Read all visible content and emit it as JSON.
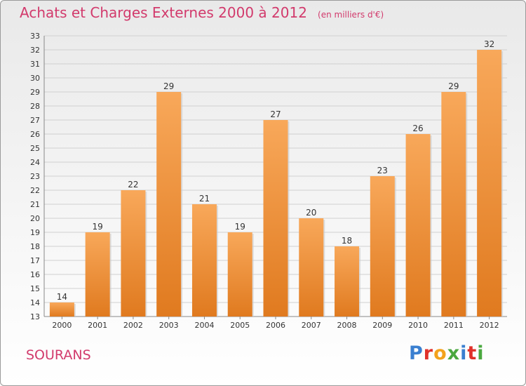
{
  "header": {
    "title": "Achats et Charges Externes 2000 à 2012",
    "unit_note": "(en milliers d'€)"
  },
  "footer": {
    "commune": "SOURANS",
    "logo_text": "Proxiti",
    "logo_colors": [
      "#3a7fd0",
      "#e0312a",
      "#f3a21c",
      "#4aa83f",
      "#3a7fd0",
      "#e0312a",
      "#4aa83f"
    ]
  },
  "colors": {
    "bar_light": "#f8a85a",
    "bar_dark": "#e07a1f",
    "title": "#d23a6c",
    "grid": "#d0d0d0"
  },
  "chart_data": {
    "type": "bar",
    "categories": [
      "2000",
      "2001",
      "2002",
      "2003",
      "2004",
      "2005",
      "2006",
      "2007",
      "2008",
      "2009",
      "2010",
      "2011",
      "2012"
    ],
    "values": [
      14,
      19,
      22,
      29,
      21,
      19,
      27,
      20,
      18,
      23,
      26,
      29,
      32
    ],
    "data_labels": [
      "14",
      "19",
      "22",
      "29",
      "21",
      "19",
      "27",
      "20",
      "18",
      "23",
      "26",
      "29",
      "32"
    ],
    "ylim": [
      13,
      33
    ],
    "yticks": [
      "13",
      "14",
      "15",
      "16",
      "17",
      "18",
      "19",
      "20",
      "21",
      "22",
      "23",
      "24",
      "25",
      "26",
      "27",
      "28",
      "29",
      "30",
      "31",
      "32",
      "33"
    ],
    "grid": true,
    "xlabel": "",
    "ylabel": ""
  }
}
